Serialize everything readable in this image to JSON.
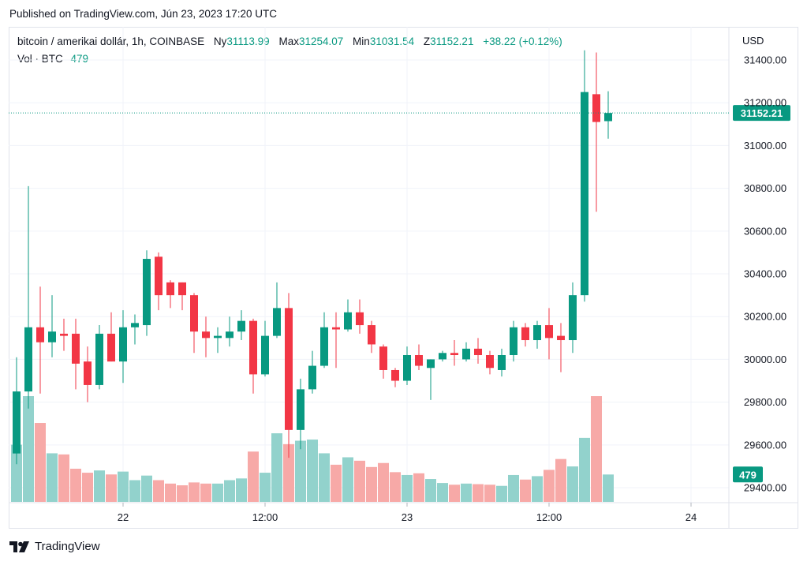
{
  "published": "Published on TradingView.com, Jún 23, 2023 17:20 UTC",
  "legend": {
    "symbol": "bitcoin / amerikai dollár, 1h, COINBASE",
    "open_label": "Ny",
    "open": "31113.99",
    "high_label": "Max",
    "high": "31254.07",
    "low_label": "Min",
    "low": "31031.54",
    "close_label": "Z",
    "close": "31152.21",
    "change": "+38.22 (+0.12%)"
  },
  "volume_legend": {
    "label": "Vol · BTC",
    "value": "479"
  },
  "footer": {
    "brand": "TradingView"
  },
  "colors": {
    "up": "#089981",
    "down": "#f23645",
    "up_vol": "#92d2cc",
    "down_vol": "#f7a9a7"
  },
  "chart_data": {
    "type": "candlestick",
    "currency": "USD",
    "y_ticks": [
      "31400.00",
      "31200.00",
      "31000.00",
      "30800.00",
      "30600.00",
      "30400.00",
      "30200.00",
      "30000.00",
      "29800.00",
      "29600.00",
      "29400.00"
    ],
    "ylim": [
      29330,
      31555
    ],
    "x_ticks": [
      {
        "i": 9,
        "label": "22"
      },
      {
        "i": 21,
        "label": "12:00"
      },
      {
        "i": 33,
        "label": "23"
      },
      {
        "i": 45,
        "label": "12:00"
      },
      {
        "i": 57,
        "label": "24"
      }
    ],
    "last_price": {
      "value": 31152.21,
      "label": "31152.21"
    },
    "last_volume": {
      "value": 479,
      "label": "479"
    },
    "vol_max": 1850,
    "candles": [
      {
        "o": 29560,
        "h": 30010,
        "l": 29510,
        "c": 29850,
        "v": 1000
      },
      {
        "o": 29850,
        "h": 30810,
        "l": 29770,
        "c": 30150,
        "v": 1850
      },
      {
        "o": 30150,
        "h": 30340,
        "l": 29840,
        "c": 30080,
        "v": 1380
      },
      {
        "o": 30080,
        "h": 30300,
        "l": 30010,
        "c": 30130,
        "v": 850
      },
      {
        "o": 30120,
        "h": 30190,
        "l": 30040,
        "c": 30110,
        "v": 830
      },
      {
        "o": 30120,
        "h": 30190,
        "l": 29860,
        "c": 29980,
        "v": 580
      },
      {
        "o": 29990,
        "h": 30060,
        "l": 29800,
        "c": 29880,
        "v": 510
      },
      {
        "o": 29880,
        "h": 30160,
        "l": 29860,
        "c": 30120,
        "v": 550
      },
      {
        "o": 30120,
        "h": 30220,
        "l": 29990,
        "c": 29990,
        "v": 480
      },
      {
        "o": 29990,
        "h": 30230,
        "l": 29890,
        "c": 30150,
        "v": 530
      },
      {
        "o": 30150,
        "h": 30210,
        "l": 30070,
        "c": 30170,
        "v": 380
      },
      {
        "o": 30160,
        "h": 30510,
        "l": 30110,
        "c": 30470,
        "v": 460
      },
      {
        "o": 30480,
        "h": 30500,
        "l": 30230,
        "c": 30300,
        "v": 380
      },
      {
        "o": 30360,
        "h": 30370,
        "l": 30240,
        "c": 30300,
        "v": 320
      },
      {
        "o": 30360,
        "h": 30360,
        "l": 30230,
        "c": 30300,
        "v": 290
      },
      {
        "o": 30300,
        "h": 30310,
        "l": 30030,
        "c": 30130,
        "v": 340
      },
      {
        "o": 30130,
        "h": 30200,
        "l": 30010,
        "c": 30100,
        "v": 320
      },
      {
        "o": 30100,
        "h": 30150,
        "l": 30030,
        "c": 30110,
        "v": 320
      },
      {
        "o": 30100,
        "h": 30200,
        "l": 30060,
        "c": 30130,
        "v": 380
      },
      {
        "o": 30130,
        "h": 30230,
        "l": 30090,
        "c": 30180,
        "v": 410
      },
      {
        "o": 30180,
        "h": 30190,
        "l": 29840,
        "c": 29930,
        "v": 880
      },
      {
        "o": 29930,
        "h": 30180,
        "l": 29920,
        "c": 30110,
        "v": 510
      },
      {
        "o": 30110,
        "h": 30360,
        "l": 30100,
        "c": 30240,
        "v": 1200
      },
      {
        "o": 30240,
        "h": 30310,
        "l": 29540,
        "c": 29670,
        "v": 1010
      },
      {
        "o": 29670,
        "h": 29910,
        "l": 29580,
        "c": 29860,
        "v": 1070
      },
      {
        "o": 29860,
        "h": 30040,
        "l": 29840,
        "c": 29970,
        "v": 1090
      },
      {
        "o": 29970,
        "h": 30220,
        "l": 29960,
        "c": 30150,
        "v": 850
      },
      {
        "o": 30150,
        "h": 30220,
        "l": 29960,
        "c": 30140,
        "v": 650
      },
      {
        "o": 30140,
        "h": 30280,
        "l": 30130,
        "c": 30220,
        "v": 780
      },
      {
        "o": 30220,
        "h": 30280,
        "l": 30120,
        "c": 30160,
        "v": 720
      },
      {
        "o": 30160,
        "h": 30180,
        "l": 30030,
        "c": 30070,
        "v": 610
      },
      {
        "o": 30060,
        "h": 30070,
        "l": 29910,
        "c": 29950,
        "v": 680
      },
      {
        "o": 29950,
        "h": 29960,
        "l": 29870,
        "c": 29900,
        "v": 520
      },
      {
        "o": 29900,
        "h": 30060,
        "l": 29880,
        "c": 30020,
        "v": 470
      },
      {
        "o": 30020,
        "h": 30070,
        "l": 29950,
        "c": 29970,
        "v": 500
      },
      {
        "o": 29960,
        "h": 30000,
        "l": 29810,
        "c": 30000,
        "v": 400
      },
      {
        "o": 30000,
        "h": 30040,
        "l": 29990,
        "c": 30030,
        "v": 330
      },
      {
        "o": 30030,
        "h": 30090,
        "l": 29970,
        "c": 30020,
        "v": 300
      },
      {
        "o": 30000,
        "h": 30080,
        "l": 29990,
        "c": 30050,
        "v": 320
      },
      {
        "o": 30050,
        "h": 30100,
        "l": 29980,
        "c": 30020,
        "v": 310
      },
      {
        "o": 30020,
        "h": 30040,
        "l": 29930,
        "c": 29960,
        "v": 300
      },
      {
        "o": 29950,
        "h": 30050,
        "l": 29920,
        "c": 30020,
        "v": 280
      },
      {
        "o": 30020,
        "h": 30180,
        "l": 29990,
        "c": 30150,
        "v": 470
      },
      {
        "o": 30150,
        "h": 30170,
        "l": 30060,
        "c": 30090,
        "v": 390
      },
      {
        "o": 30090,
        "h": 30180,
        "l": 30050,
        "c": 30160,
        "v": 450
      },
      {
        "o": 30160,
        "h": 30240,
        "l": 30000,
        "c": 30100,
        "v": 560
      },
      {
        "o": 30110,
        "h": 30170,
        "l": 29940,
        "c": 30090,
        "v": 750
      },
      {
        "o": 30090,
        "h": 30360,
        "l": 30030,
        "c": 30300,
        "v": 620
      },
      {
        "o": 30300,
        "h": 31445,
        "l": 30270,
        "c": 31250,
        "v": 1120
      },
      {
        "o": 31240,
        "h": 31435,
        "l": 30690,
        "c": 31110,
        "v": 1850
      },
      {
        "o": 31114,
        "h": 31254,
        "l": 31032,
        "c": 31152,
        "v": 479
      }
    ]
  }
}
